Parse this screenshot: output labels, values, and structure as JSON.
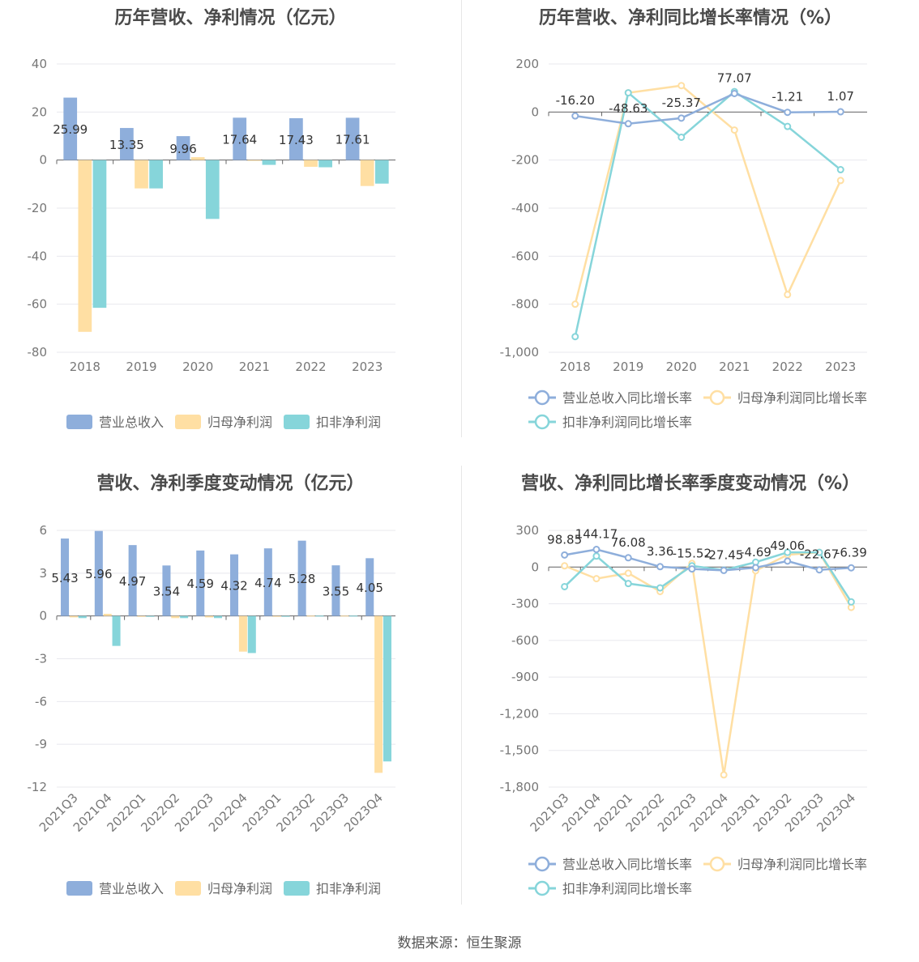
{
  "footer": "数据来源：恒生聚源",
  "colors": {
    "revenue": "#8eaedb",
    "net_profit": "#ffdfa3",
    "deducted": "#86d5da"
  },
  "chart_data": [
    {
      "id": "annual-amount",
      "type": "bar",
      "title": "历年营收、净利情况（亿元）",
      "categories": [
        "2018",
        "2019",
        "2020",
        "2021",
        "2022",
        "2023"
      ],
      "ylim": [
        -80,
        40
      ],
      "yticks": [
        40,
        20,
        0,
        -20,
        -40,
        -60,
        -80
      ],
      "series": [
        {
          "name": "营业总收入",
          "values": [
            25.99,
            13.35,
            9.96,
            17.64,
            17.43,
            17.61
          ],
          "labels": [
            "25.99",
            "13.35",
            "9.96",
            "17.64",
            "17.43",
            "17.61"
          ]
        },
        {
          "name": "归母净利润",
          "values": [
            -71.5,
            -11.8,
            1.2,
            -0.2,
            -2.8,
            -10.8
          ]
        },
        {
          "name": "扣非净利润",
          "values": [
            -61.5,
            -11.8,
            -24.5,
            -2.0,
            -3.0,
            -9.8
          ]
        }
      ],
      "legend": "bottom",
      "grid": true
    },
    {
      "id": "annual-growth",
      "type": "line",
      "title": "历年营收、净利同比增长率情况（%）",
      "categories": [
        "2018",
        "2019",
        "2020",
        "2021",
        "2022",
        "2023"
      ],
      "ylim": [
        -1000,
        200
      ],
      "yticks": [
        "200",
        "0",
        "-200",
        "-400",
        "-600",
        "-800",
        "-1,000"
      ],
      "ytick_values": [
        200,
        0,
        -200,
        -400,
        -600,
        -800,
        -1000
      ],
      "series": [
        {
          "name": "营业总收入同比增长率",
          "values": [
            -16.2,
            -48.63,
            -25.37,
            77.07,
            -1.21,
            1.07
          ],
          "labels": [
            "-16.20",
            "-48.63",
            "-25.37",
            "77.07",
            "-1.21",
            "1.07"
          ]
        },
        {
          "name": "归母净利润同比增长率",
          "values": [
            -800,
            80,
            110,
            -75,
            -760,
            -285
          ]
        },
        {
          "name": "扣非净利润同比增长率",
          "values": [
            -935,
            80,
            -105,
            85,
            -60,
            -240
          ]
        }
      ],
      "legend": "bottom",
      "grid": true
    },
    {
      "id": "quarterly-amount",
      "type": "bar",
      "title": "营收、净利季度变动情况（亿元）",
      "categories": [
        "2021Q3",
        "2021Q4",
        "2022Q1",
        "2022Q2",
        "2022Q3",
        "2022Q4",
        "2023Q1",
        "2023Q2",
        "2023Q3",
        "2023Q4"
      ],
      "ylim": [
        -12,
        6
      ],
      "yticks": [
        6,
        3,
        0,
        -3,
        -6,
        -9,
        -12
      ],
      "series": [
        {
          "name": "营业总收入",
          "values": [
            5.43,
            5.96,
            4.97,
            3.54,
            4.59,
            4.32,
            4.74,
            5.28,
            3.55,
            4.05
          ],
          "labels": [
            "5.43",
            "5.96",
            "4.97",
            "3.54",
            "4.59",
            "4.32",
            "4.74",
            "5.28",
            "3.55",
            "4.05"
          ]
        },
        {
          "name": "归母净利润",
          "values": [
            -0.1,
            0.15,
            -0.05,
            -0.15,
            -0.1,
            -2.5,
            -0.05,
            0.02,
            0.02,
            -11.0
          ]
        },
        {
          "name": "扣非净利润",
          "values": [
            -0.15,
            -2.1,
            -0.05,
            -0.15,
            -0.15,
            -2.6,
            -0.05,
            0.02,
            0.02,
            -10.2
          ]
        }
      ],
      "legend": "bottom",
      "grid": true
    },
    {
      "id": "quarterly-growth",
      "type": "line",
      "title": "营收、净利同比增长率季度变动情况（%）",
      "categories": [
        "2021Q3",
        "2021Q4",
        "2022Q1",
        "2022Q2",
        "2022Q3",
        "2022Q4",
        "2023Q1",
        "2023Q2",
        "2023Q3",
        "2023Q4"
      ],
      "ylim": [
        -1800,
        300
      ],
      "yticks": [
        "300",
        "0",
        "-300",
        "-600",
        "-900",
        "-1,200",
        "-1,500",
        "-1,800"
      ],
      "ytick_values": [
        300,
        0,
        -300,
        -600,
        -900,
        -1200,
        -1500,
        -1800
      ],
      "series": [
        {
          "name": "营业总收入同比增长率",
          "values": [
            98.85,
            144.17,
            76.08,
            3.36,
            -15.52,
            -27.45,
            -4.69,
            49.06,
            -22.67,
            -6.39
          ],
          "labels": [
            "98.85",
            "144.17",
            "76.08",
            "3.36",
            "-15.52",
            "-27.45",
            "-4.69",
            "49.06",
            "-22.67",
            "-6.39"
          ]
        },
        {
          "name": "归母净利润同比增长率",
          "values": [
            10,
            -95,
            -50,
            -200,
            30,
            -1700,
            -30,
            100,
            120,
            -330
          ]
        },
        {
          "name": "扣非净利润同比增长率",
          "values": [
            -160,
            90,
            -135,
            -170,
            10,
            -25,
            40,
            120,
            120,
            -285
          ]
        }
      ],
      "legend": "bottom",
      "grid": true
    }
  ]
}
